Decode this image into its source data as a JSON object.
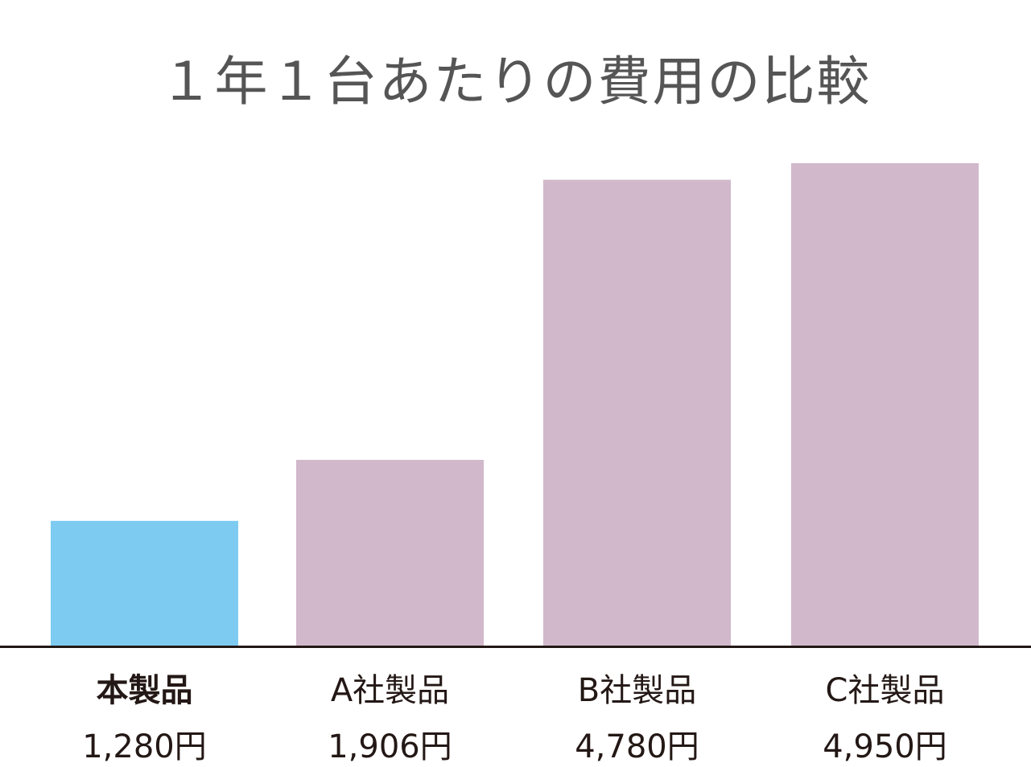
{
  "chart_data": {
    "type": "bar",
    "title": "１年１台あたりの費用の比較",
    "categories": [
      "本製品",
      "A社製品",
      "B社製品",
      "C社製品"
    ],
    "values": [
      1280,
      1906,
      4780,
      4950
    ],
    "value_labels": [
      "1,280円",
      "1,906円",
      "4,780円",
      "4,950円"
    ],
    "unit": "円",
    "colors": [
      "#7ecbf2",
      "#d1b8cb",
      "#d1b8cb",
      "#d1b8cb"
    ],
    "highlight_category": "本製品",
    "ylim": [
      0,
      4950
    ],
    "grid": false,
    "legend": "none",
    "xlabel": "",
    "ylabel": ""
  }
}
